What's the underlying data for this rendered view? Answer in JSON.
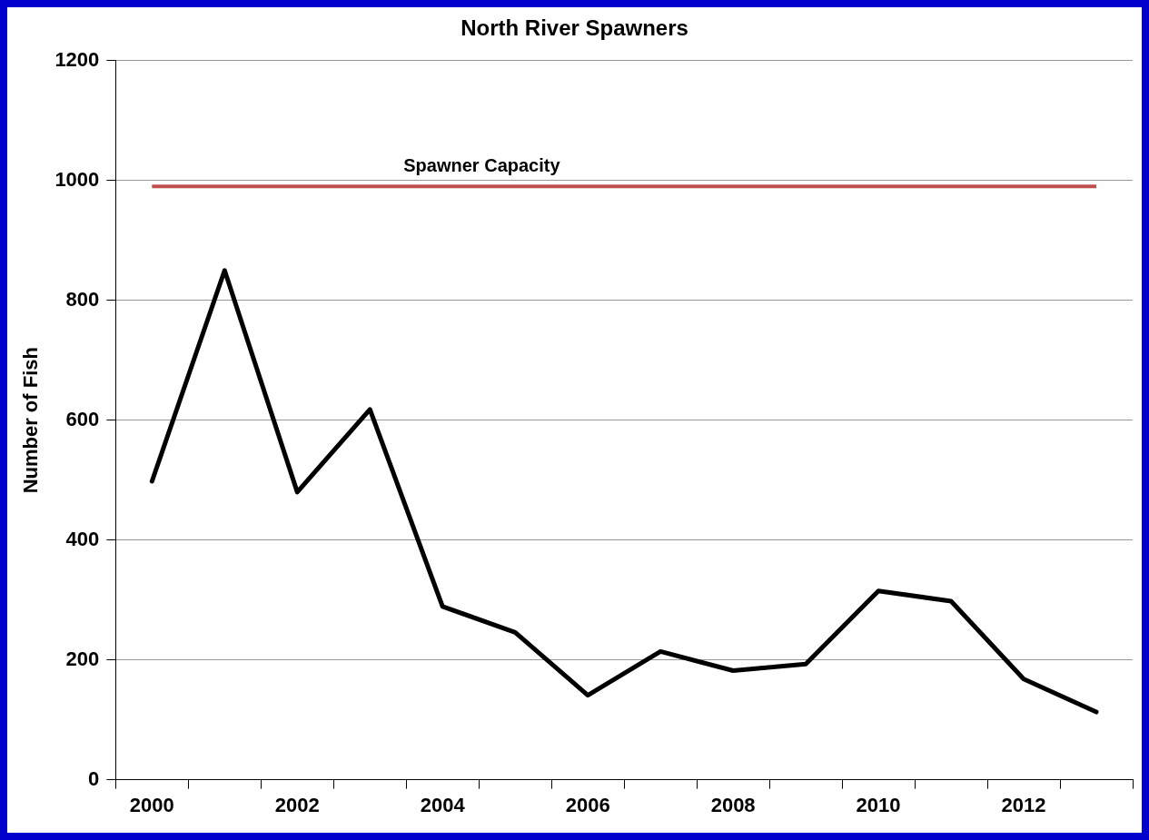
{
  "chart_data": {
    "type": "line",
    "title": "North River Spawners",
    "ylabel": "Number of Fish",
    "categories": [
      "2000",
      null,
      "2002",
      null,
      "2004",
      null,
      "2006",
      null,
      "2008",
      null,
      "2010",
      null,
      "2012",
      null
    ],
    "series": [
      {
        "color": "#000000",
        "values": [
          498,
          850,
          480,
          618,
          289,
          246,
          141,
          214,
          182,
          193,
          315,
          298,
          168,
          113
        ]
      }
    ],
    "ylim": [
      0,
      1200
    ],
    "yticks": [
      0,
      200,
      400,
      600,
      800,
      1000,
      1200
    ],
    "grid": "y",
    "legend": false,
    "marker": "none",
    "line_style": "solid",
    "ref_lines": [
      {
        "axis": "y",
        "value": 990,
        "label": "Spawner Capacity",
        "color": "#c0504d"
      }
    ]
  }
}
